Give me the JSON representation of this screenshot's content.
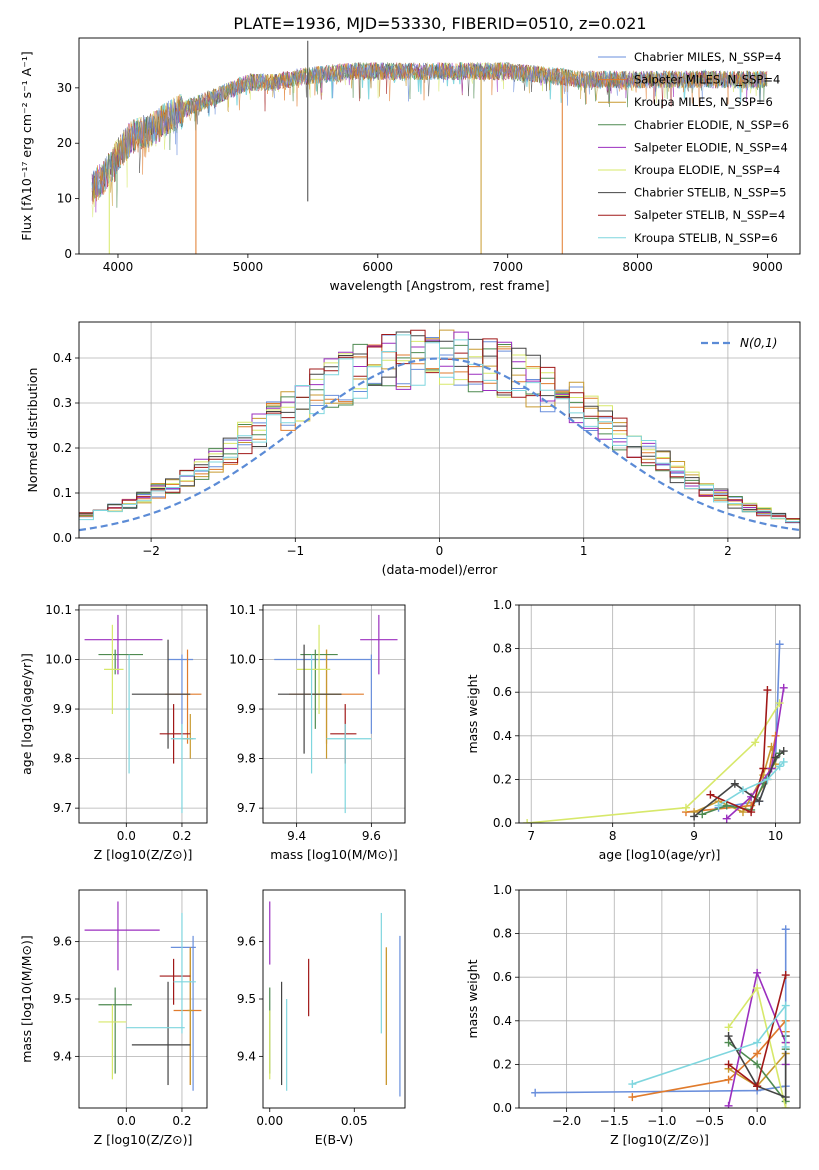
{
  "figure_title": "PLATE=1936, MJD=53330, FIBERID=0510, z=0.021",
  "models": [
    {
      "name": "Chabrier MILES, N_SSP=4",
      "color": "#6a8fdc"
    },
    {
      "name": "Salpeter MILES, N_SSP=4",
      "color": "#e07b2c"
    },
    {
      "name": "Kroupa MILES, N_SSP=6",
      "color": "#c89a30"
    },
    {
      "name": "Chabrier ELODIE, N_SSP=6",
      "color": "#4e8a50"
    },
    {
      "name": "Salpeter ELODIE, N_SSP=4",
      "color": "#9b2fbf"
    },
    {
      "name": "Kroupa ELODIE, N_SSP=4",
      "color": "#d7e86a"
    },
    {
      "name": "Chabrier STELIB, N_SSP=5",
      "color": "#444444"
    },
    {
      "name": "Salpeter STELIB, N_SSP=4",
      "color": "#a01818"
    },
    {
      "name": "Kroupa STELIB, N_SSP=6",
      "color": "#7fd6de"
    }
  ],
  "chart_data": [
    {
      "id": "spectrum",
      "type": "line",
      "xlabel": "wavelength [Angstrom, rest frame]",
      "ylabel": "Flux [fλ10⁻¹⁷ erg cm⁻² s⁻¹ A⁻¹]",
      "xlim": [
        3700,
        9250
      ],
      "ylim": [
        0,
        39
      ],
      "xticks": [
        4000,
        5000,
        6000,
        7000,
        8000,
        9000
      ],
      "yticks": [
        0,
        10,
        20,
        30
      ],
      "legend_position": "right",
      "continuum_x": [
        3800,
        3900,
        4000,
        4100,
        4200,
        4300,
        4400,
        4500,
        4600,
        4700,
        4800,
        4900,
        5000,
        5200,
        5400,
        5600,
        5800,
        6000,
        6200,
        6400,
        6600,
        6800,
        7000,
        7200,
        7400,
        7600,
        7800,
        8000,
        8200,
        8400,
        8600,
        8800,
        9000
      ],
      "continuum_y": [
        12,
        14,
        18,
        21,
        22,
        23,
        25,
        26,
        27,
        28,
        29,
        30,
        31,
        31,
        32,
        32.5,
        33,
        33,
        33,
        33,
        33,
        33,
        33,
        32.5,
        32,
        31.5,
        31.5,
        31.5,
        31.5,
        31.5,
        31.5,
        31.5,
        31.5
      ],
      "features": [
        {
          "x": 3933,
          "y": 0,
          "series": "Kroupa ELODIE, N_SSP=4"
        },
        {
          "x": 4600,
          "y": 0,
          "series": "Salpeter MILES, N_SSP=4"
        },
        {
          "x": 5461,
          "y": 38.5,
          "series": "Chabrier STELIB, N_SSP=5"
        },
        {
          "x": 5461,
          "y": 9.5,
          "series": "Chabrier STELIB, N_SSP=5"
        },
        {
          "x": 6795,
          "y": 0,
          "series": "Kroupa MILES, N_SSP=6"
        },
        {
          "x": 7420,
          "y": 0,
          "series": "Salpeter MILES, N_SSP=4"
        }
      ]
    },
    {
      "id": "residuals",
      "type": "histogram",
      "xlabel": "(data-model)/error",
      "ylabel": "Normed distribution",
      "xlim": [
        -2.5,
        2.5
      ],
      "ylim": [
        0,
        0.48
      ],
      "xticks": [
        -2,
        -1,
        0,
        1,
        2
      ],
      "yticks": [
        0,
        0.1,
        0.2,
        0.3,
        0.4
      ],
      "grid": true,
      "legend_position": "top-right",
      "reference_label": "N(0,1)",
      "bin_width": 0.1,
      "reference_density": [
        0.018,
        0.024,
        0.028,
        0.033,
        0.04,
        0.048,
        0.056,
        0.066,
        0.079,
        0.09,
        0.104,
        0.119,
        0.133,
        0.15,
        0.171,
        0.194,
        0.22,
        0.242,
        0.264,
        0.287,
        0.307,
        0.326,
        0.342,
        0.356,
        0.371,
        0.38,
        0.389,
        0.394,
        0.396,
        0.399,
        0.398,
        0.397,
        0.391,
        0.384,
        0.373,
        0.363,
        0.348,
        0.333,
        0.316,
        0.296,
        0.277,
        0.254,
        0.23,
        0.208,
        0.187,
        0.166,
        0.146,
        0.127,
        0.111,
        0.095,
        0.08,
        0.068,
        0.058,
        0.049,
        0.04,
        0.033,
        0.028,
        0.023,
        0.019,
        0.016,
        0.013
      ]
    },
    {
      "id": "age_vs_Z",
      "type": "errorbar",
      "xlabel": "Z [log10(Z/Z⊙)]",
      "ylabel": "age  [log10(age/yr)]",
      "xlim": [
        -0.17,
        0.29
      ],
      "ylim": [
        9.67,
        10.11
      ],
      "xticks": [
        0.0,
        0.2
      ],
      "yticks": [
        9.7,
        9.8,
        9.9,
        10.0,
        10.1
      ],
      "grid": true,
      "points": [
        {
          "series": "Chabrier MILES, N_SSP=4",
          "x": 0.2,
          "y": 10.0,
          "xlo": 0.15,
          "xhi": 0.24,
          "ylo": 9.85,
          "yhi": 10.01
        },
        {
          "series": "Salpeter MILES, N_SSP=4",
          "x": 0.22,
          "y": 9.93,
          "xlo": 0.14,
          "xhi": 0.27,
          "ylo": 9.83,
          "yhi": 10.02
        },
        {
          "series": "Kroupa MILES, N_SSP=6",
          "x": 0.23,
          "y": 9.84,
          "xlo": 0.2,
          "xhi": 0.24,
          "ylo": 9.8,
          "yhi": 9.89
        },
        {
          "series": "Chabrier ELODIE, N_SSP=6",
          "x": -0.04,
          "y": 10.01,
          "xlo": -0.1,
          "xhi": 0.06,
          "ylo": 9.97,
          "yhi": 10.02
        },
        {
          "series": "Salpeter ELODIE, N_SSP=4",
          "x": -0.03,
          "y": 10.04,
          "xlo": -0.15,
          "xhi": 0.13,
          "ylo": 9.97,
          "yhi": 10.09
        },
        {
          "series": "Kroupa ELODIE, N_SSP=4",
          "x": -0.05,
          "y": 9.98,
          "xlo": -0.08,
          "xhi": -0.01,
          "ylo": 9.89,
          "yhi": 10.07
        },
        {
          "series": "Chabrier STELIB, N_SSP=5",
          "x": 0.15,
          "y": 9.93,
          "xlo": 0.02,
          "xhi": 0.23,
          "ylo": 9.82,
          "yhi": 10.04
        },
        {
          "series": "Salpeter STELIB, N_SSP=4",
          "x": 0.17,
          "y": 9.85,
          "xlo": 0.12,
          "xhi": 0.23,
          "ylo": 9.79,
          "yhi": 9.91
        },
        {
          "series": "Kroupa STELIB, N_SSP=6",
          "x": 0.2,
          "y": 9.84,
          "xlo": 0.16,
          "xhi": 0.25,
          "ylo": 9.69,
          "yhi": 9.87
        },
        {
          "series": "Kroupa STELIB, N_SSP=6",
          "x": 0.01,
          "y": 9.9,
          "xlo": 0.0,
          "xhi": 0.01,
          "ylo": 9.77,
          "yhi": 10.01
        }
      ]
    },
    {
      "id": "age_vs_mass",
      "type": "errorbar",
      "xlabel": "mass [log10(M/M⊙)]",
      "ylabel": "",
      "xlim": [
        9.31,
        9.69
      ],
      "ylim": [
        9.67,
        10.11
      ],
      "xticks": [
        9.4,
        9.6
      ],
      "yticks": [
        9.7,
        9.8,
        9.9,
        10.0,
        10.1
      ],
      "grid": true,
      "points": [
        {
          "series": "Chabrier MILES, N_SSP=4",
          "x": 9.6,
          "y": 10.0,
          "xlo": 9.34,
          "xhi": 9.6,
          "ylo": 9.85,
          "yhi": 10.01
        },
        {
          "series": "Salpeter MILES, N_SSP=4",
          "x": 9.48,
          "y": 9.93,
          "xlo": 9.38,
          "xhi": 9.58,
          "ylo": 9.83,
          "yhi": 10.02
        },
        {
          "series": "Kroupa MILES, N_SSP=6",
          "x": 9.48,
          "y": 9.93,
          "xlo": 9.44,
          "xhi": 9.52,
          "ylo": 9.8,
          "yhi": 10.02
        },
        {
          "series": "Chabrier ELODIE, N_SSP=6",
          "x": 9.45,
          "y": 10.01,
          "xlo": 9.41,
          "xhi": 9.51,
          "ylo": 9.86,
          "yhi": 10.02
        },
        {
          "series": "Salpeter ELODIE, N_SSP=4",
          "x": 9.62,
          "y": 10.04,
          "xlo": 9.57,
          "xhi": 9.67,
          "ylo": 9.97,
          "yhi": 10.09
        },
        {
          "series": "Kroupa ELODIE, N_SSP=4",
          "x": 9.46,
          "y": 9.98,
          "xlo": 9.4,
          "xhi": 9.49,
          "ylo": 9.89,
          "yhi": 10.07
        },
        {
          "series": "Chabrier STELIB, N_SSP=5",
          "x": 9.42,
          "y": 9.93,
          "xlo": 9.35,
          "xhi": 9.52,
          "ylo": 9.81,
          "yhi": 10.03
        },
        {
          "series": "Salpeter STELIB, N_SSP=4",
          "x": 9.53,
          "y": 9.85,
          "xlo": 9.49,
          "xhi": 9.56,
          "ylo": 9.79,
          "yhi": 9.91
        },
        {
          "series": "Kroupa STELIB, N_SSP=6",
          "x": 9.53,
          "y": 9.84,
          "xlo": 9.48,
          "xhi": 9.6,
          "ylo": 9.69,
          "yhi": 9.87
        },
        {
          "series": "Kroupa STELIB, N_SSP=6",
          "x": 9.44,
          "y": 9.9,
          "xlo": 9.44,
          "xhi": 9.44,
          "ylo": 9.77,
          "yhi": 10.01
        }
      ]
    },
    {
      "id": "massweight_vs_age",
      "type": "line",
      "xlabel": "age  [log10(age/yr)]",
      "ylabel": "mass weight",
      "xlim": [
        6.85,
        10.3
      ],
      "ylim": [
        0,
        1.0
      ],
      "xticks": [
        7,
        8,
        9,
        10
      ],
      "yticks": [
        0.0,
        0.2,
        0.4,
        0.6,
        0.8,
        1.0
      ],
      "grid": true,
      "series": [
        {
          "name": "Chabrier MILES, N_SSP=4",
          "x": [
            9.3,
            9.8,
            10.0,
            10.05
          ],
          "y": [
            0.07,
            0.1,
            0.3,
            0.82
          ]
        },
        {
          "name": "Salpeter MILES, N_SSP=4",
          "x": [
            8.9,
            9.7,
            9.9,
            10.0
          ],
          "y": [
            0.05,
            0.08,
            0.2,
            0.4
          ]
        },
        {
          "name": "Kroupa MILES, N_SSP=6",
          "x": [
            9.0,
            9.3,
            9.6,
            9.85,
            9.95,
            10.0
          ],
          "y": [
            0.05,
            0.1,
            0.05,
            0.22,
            0.35,
            0.27
          ]
        },
        {
          "name": "Chabrier ELODIE, N_SSP=6",
          "x": [
            9.1,
            9.4,
            9.7,
            9.85,
            9.95,
            10.05
          ],
          "y": [
            0.04,
            0.08,
            0.06,
            0.18,
            0.25,
            0.32
          ]
        },
        {
          "name": "Salpeter ELODIE, N_SSP=4",
          "x": [
            9.4,
            9.7,
            9.95,
            10.1
          ],
          "y": [
            0.02,
            0.12,
            0.25,
            0.62
          ]
        },
        {
          "name": "Kroupa ELODIE, N_SSP=4",
          "x": [
            6.95,
            8.9,
            9.75,
            10.05
          ],
          "y": [
            0.0,
            0.07,
            0.37,
            0.55
          ]
        },
        {
          "name": "Chabrier STELIB, N_SSP=5",
          "x": [
            9.0,
            9.5,
            9.8,
            10.0,
            10.1
          ],
          "y": [
            0.03,
            0.18,
            0.1,
            0.3,
            0.33
          ]
        },
        {
          "name": "Salpeter STELIB, N_SSP=4",
          "x": [
            9.2,
            9.7,
            9.85,
            9.9
          ],
          "y": [
            0.13,
            0.05,
            0.25,
            0.61
          ]
        },
        {
          "name": "Kroupa STELIB, N_SSP=6",
          "x": [
            9.3,
            9.6,
            9.9,
            10.05,
            10.1
          ],
          "y": [
            0.08,
            0.15,
            0.2,
            0.26,
            0.28
          ]
        }
      ]
    },
    {
      "id": "mass_vs_Z",
      "type": "errorbar",
      "xlabel": "Z [log10(Z/Z⊙)]",
      "ylabel": "mass [log10(M/M⊙)]",
      "xlim": [
        -0.17,
        0.29
      ],
      "ylim": [
        9.31,
        9.69
      ],
      "xticks": [
        0.0,
        0.2
      ],
      "yticks": [
        9.4,
        9.5,
        9.6
      ],
      "grid": true,
      "points": [
        {
          "series": "Chabrier MILES, N_SSP=4",
          "x": 0.24,
          "y": 9.59,
          "xlo": 0.16,
          "xhi": 0.25,
          "ylo": 9.34,
          "yhi": 9.61
        },
        {
          "series": "Salpeter MILES, N_SSP=4",
          "x": 0.23,
          "y": 9.48,
          "xlo": 0.17,
          "xhi": 0.27,
          "ylo": 9.35,
          "yhi": 9.59
        },
        {
          "series": "Kroupa MILES, N_SSP=6",
          "x": 0.23,
          "y": 9.48,
          "xlo": 0.22,
          "xhi": 0.24,
          "ylo": 9.35,
          "yhi": 9.59
        },
        {
          "series": "Chabrier ELODIE, N_SSP=6",
          "x": -0.04,
          "y": 9.49,
          "xlo": -0.1,
          "xhi": 0.02,
          "ylo": 9.37,
          "yhi": 9.52
        },
        {
          "series": "Salpeter ELODIE, N_SSP=4",
          "x": -0.03,
          "y": 9.62,
          "xlo": -0.15,
          "xhi": 0.12,
          "ylo": 9.55,
          "yhi": 9.67
        },
        {
          "series": "Kroupa ELODIE, N_SSP=4",
          "x": -0.05,
          "y": 9.46,
          "xlo": -0.1,
          "xhi": 0.0,
          "ylo": 9.36,
          "yhi": 9.49
        },
        {
          "series": "Chabrier STELIB, N_SSP=5",
          "x": 0.15,
          "y": 9.42,
          "xlo": 0.02,
          "xhi": 0.23,
          "ylo": 9.35,
          "yhi": 9.53
        },
        {
          "series": "Salpeter STELIB, N_SSP=4",
          "x": 0.17,
          "y": 9.54,
          "xlo": 0.12,
          "xhi": 0.23,
          "ylo": 9.49,
          "yhi": 9.57
        },
        {
          "series": "Kroupa STELIB, N_SSP=6",
          "x": 0.2,
          "y": 9.53,
          "xlo": 0.17,
          "xhi": 0.25,
          "ylo": 9.44,
          "yhi": 9.65
        },
        {
          "series": "Kroupa STELIB, N_SSP=6",
          "x": 0.01,
          "y": 9.45,
          "xlo": 0.0,
          "xhi": 0.21,
          "ylo": 9.45,
          "yhi": 9.45
        }
      ]
    },
    {
      "id": "mass_vs_EBV",
      "type": "errorbar",
      "xlabel": "E(B-V)",
      "ylabel": "",
      "xlim": [
        -0.004,
        0.08
      ],
      "ylim": [
        9.31,
        9.69
      ],
      "xticks": [
        0.0,
        0.05
      ],
      "yticks": [
        9.4,
        9.5,
        9.6
      ],
      "grid": false,
      "points": [
        {
          "series": "Chabrier MILES, N_SSP=4",
          "x": 0.077,
          "y": 9.47,
          "ylo": 9.33,
          "yhi": 9.61
        },
        {
          "series": "Salpeter MILES, N_SSP=4",
          "x": 0.069,
          "y": 9.48,
          "ylo": 9.35,
          "yhi": 9.59
        },
        {
          "series": "Kroupa MILES, N_SSP=6",
          "x": 0.069,
          "y": 9.48,
          "ylo": 9.35,
          "yhi": 9.59
        },
        {
          "series": "Chabrier ELODIE, N_SSP=6",
          "x": 0.0,
          "y": 9.45,
          "ylo": 9.37,
          "yhi": 9.52
        },
        {
          "series": "Salpeter ELODIE, N_SSP=4",
          "x": 0.0,
          "y": 9.62,
          "ylo": 9.56,
          "yhi": 9.67
        },
        {
          "series": "Kroupa ELODIE, N_SSP=4",
          "x": 0.0,
          "y": 9.42,
          "ylo": 9.36,
          "yhi": 9.48
        },
        {
          "series": "Chabrier STELIB, N_SSP=5",
          "x": 0.007,
          "y": 9.44,
          "ylo": 9.35,
          "yhi": 9.53
        },
        {
          "series": "Salpeter STELIB, N_SSP=4",
          "x": 0.023,
          "y": 9.52,
          "ylo": 9.47,
          "yhi": 9.57
        },
        {
          "series": "Kroupa STELIB, N_SSP=6",
          "x": 0.01,
          "y": 9.42,
          "ylo": 9.34,
          "yhi": 9.5
        },
        {
          "series": "Kroupa STELIB, N_SSP=6",
          "x": 0.066,
          "y": 9.54,
          "ylo": 9.44,
          "yhi": 9.65
        }
      ]
    },
    {
      "id": "massweight_vs_Z",
      "type": "line",
      "xlabel": "Z [log10(Z/Z⊙)]",
      "ylabel": "mass weight",
      "xlim": [
        -2.5,
        0.45
      ],
      "ylim": [
        0,
        1.0
      ],
      "xticks": [
        -2.0,
        -1.5,
        -1.0,
        -0.5,
        0.0
      ],
      "yticks": [
        0.0,
        0.2,
        0.4,
        0.6,
        0.8,
        1.0
      ],
      "grid": true,
      "series": [
        {
          "name": "Chabrier MILES, N_SSP=4",
          "x": [
            -2.33,
            0.0,
            0.3,
            0.3
          ],
          "y": [
            0.07,
            0.08,
            0.1,
            0.82
          ]
        },
        {
          "name": "Salpeter MILES, N_SSP=4",
          "x": [
            -1.31,
            -0.3,
            0.0,
            0.3,
            0.3
          ],
          "y": [
            0.05,
            0.13,
            0.25,
            0.4,
            0.35
          ]
        },
        {
          "name": "Kroupa MILES, N_SSP=6",
          "x": [
            -0.3,
            0.0,
            0.3,
            0.3
          ],
          "y": [
            0.18,
            0.1,
            0.25,
            0.3
          ]
        },
        {
          "name": "Chabrier ELODIE, N_SSP=6",
          "x": [
            -0.3,
            0.0,
            0.3,
            0.3
          ],
          "y": [
            0.3,
            0.2,
            0.03,
            0.27
          ]
        },
        {
          "name": "Salpeter ELODIE, N_SSP=4",
          "x": [
            -0.3,
            0.0,
            0.3,
            0.3
          ],
          "y": [
            0.01,
            0.62,
            0.3,
            0.2
          ]
        },
        {
          "name": "Kroupa ELODIE, N_SSP=4",
          "x": [
            -0.3,
            0.0,
            0.3
          ],
          "y": [
            0.37,
            0.55,
            0.0
          ]
        },
        {
          "name": "Chabrier STELIB, N_SSP=5",
          "x": [
            -0.3,
            0.0,
            0.3,
            0.3
          ],
          "y": [
            0.33,
            0.1,
            0.05,
            0.33
          ]
        },
        {
          "name": "Salpeter STELIB, N_SSP=4",
          "x": [
            -0.3,
            0.0,
            0.3
          ],
          "y": [
            0.2,
            0.1,
            0.61
          ]
        },
        {
          "name": "Kroupa STELIB, N_SSP=6",
          "x": [
            -1.31,
            0.0,
            0.3,
            0.3
          ],
          "y": [
            0.11,
            0.3,
            0.47,
            0.28
          ]
        }
      ]
    }
  ]
}
